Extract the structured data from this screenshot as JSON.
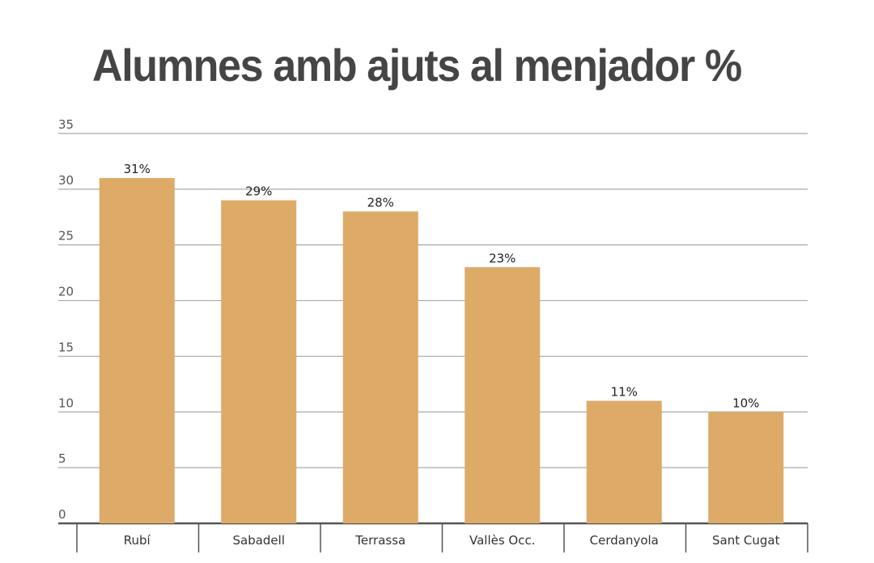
{
  "chart_data": {
    "type": "bar",
    "title": "Alumnes amb ajuts al menjador %",
    "categories": [
      "Rubí",
      "Sabadell",
      "Terrassa",
      "Vallès Occ.",
      "Cerdanyola",
      "Sant Cugat"
    ],
    "values": [
      31,
      29,
      28,
      23,
      11,
      10
    ],
    "data_labels": [
      "31%",
      "29%",
      "28%",
      "23%",
      "11%",
      "10%"
    ],
    "ylim": [
      0,
      35
    ],
    "yticks": [
      0,
      5,
      10,
      15,
      20,
      25,
      30,
      35
    ],
    "xlabel": "",
    "ylabel": "",
    "grid": true,
    "legend": "none",
    "colors": {
      "bar": "#DEAA68",
      "grid": "#a9a9a9",
      "axis": "#555555",
      "title": "#454545"
    }
  }
}
